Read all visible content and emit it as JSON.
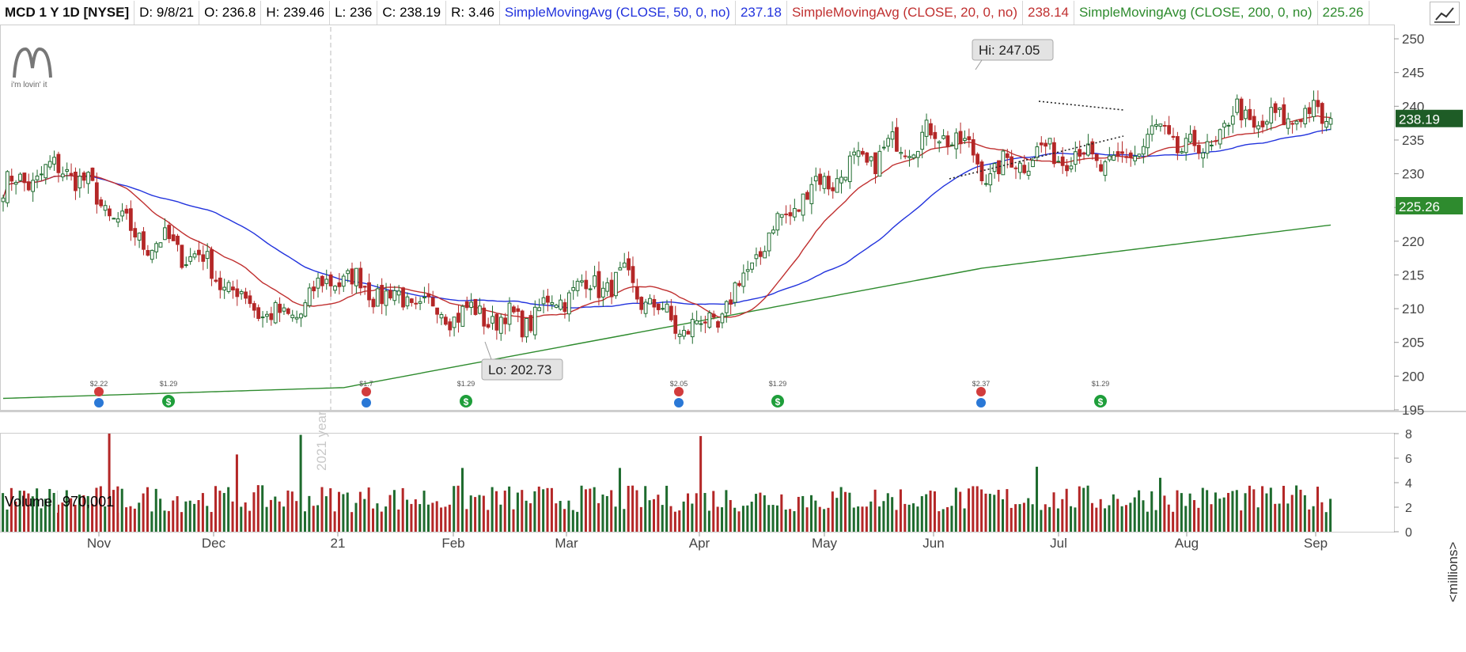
{
  "header": {
    "symbol": "MCD 1 Y 1D [NYSE]",
    "date": "D: 9/8/21",
    "open": "O: 236.8",
    "high": "H: 239.46",
    "low": "L: 236",
    "close": "C: 238.19",
    "range": "R: 3.46",
    "sma50_label": "SimpleMovingAvg (CLOSE, 50, 0, no)",
    "sma50_value": "237.18",
    "sma20_label": "SimpleMovingAvg (CLOSE, 20, 0, no)",
    "sma20_value": "238.14",
    "sma200_label": "SimpleMovingAvg (CLOSE, 200, 0, no)",
    "sma200_value": "225.26"
  },
  "logo": {
    "tagline": "i'm lovin' it"
  },
  "volume": {
    "label": "Volume",
    "value": "970,001",
    "unit": "<millions>"
  },
  "colors": {
    "up": "#1e6b2e",
    "down": "#b42727",
    "sma50": "#2233dd",
    "sma20": "#c03030",
    "sma200": "#2e8b2e"
  },
  "chart_data": {
    "type": "candlestick",
    "title": "MCD 1 Y 1D [NYSE]",
    "ylim": [
      195,
      252
    ],
    "yticks": [
      195,
      200,
      205,
      210,
      215,
      220,
      225,
      230,
      235,
      240,
      245,
      250
    ],
    "xlabels": [
      "Nov",
      "Dec",
      "21",
      "Feb",
      "Mar",
      "Apr",
      "May",
      "Jun",
      "Jul",
      "Aug",
      "Sep"
    ],
    "year_marker": "2021 year",
    "annotations": {
      "high": "Hi: 247.05",
      "low": "Lo: 202.73"
    },
    "last_price": "238.19",
    "sma200_badge": "225.26",
    "dividends": [
      "$2.22",
      "$1.29",
      "$1.7",
      "$1.29",
      "$2.05",
      "$1.29",
      "$2.37",
      "$1.29"
    ],
    "price_anchors": [
      [
        0,
        228
      ],
      [
        15,
        231
      ],
      [
        30,
        221
      ],
      [
        45,
        218
      ],
      [
        55,
        212
      ],
      [
        66,
        208
      ],
      [
        78,
        215
      ],
      [
        90,
        212
      ],
      [
        100,
        210
      ],
      [
        112,
        209
      ],
      [
        122,
        208
      ],
      [
        134,
        213
      ],
      [
        146,
        214
      ],
      [
        159,
        207
      ],
      [
        168,
        208
      ],
      [
        180,
        221
      ],
      [
        190,
        228
      ],
      [
        200,
        231
      ],
      [
        213,
        235
      ],
      [
        222,
        236
      ],
      [
        232,
        230
      ],
      [
        242,
        233
      ],
      [
        252,
        233
      ],
      [
        262,
        231
      ],
      [
        270,
        236
      ],
      [
        282,
        233
      ],
      [
        290,
        239
      ],
      [
        296,
        237
      ],
      [
        304,
        239
      ],
      [
        312,
        238
      ]
    ],
    "volume_ylim": [
      0,
      8
    ],
    "volume_yticks": [
      0,
      2,
      4,
      6,
      8
    ],
    "volume_spikes": [
      [
        25,
        8
      ],
      [
        55,
        6.3
      ],
      [
        70,
        7.9
      ],
      [
        108,
        5.2
      ],
      [
        145,
        5.2
      ],
      [
        164,
        7.8
      ],
      [
        243,
        5.3
      ],
      [
        272,
        4.4
      ],
      [
        290,
        3.4
      ]
    ]
  }
}
